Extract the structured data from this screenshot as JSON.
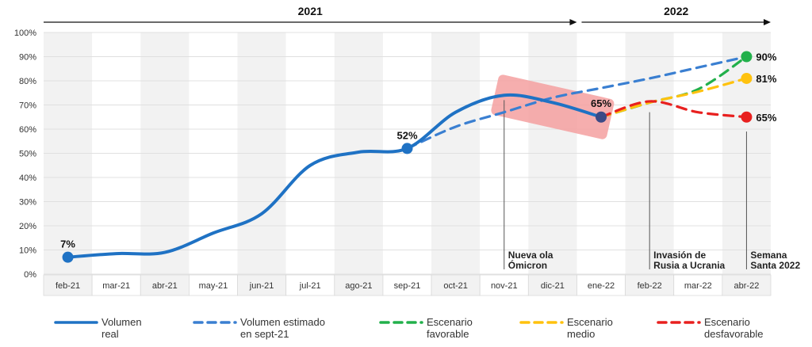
{
  "chart_data": {
    "type": "line",
    "categories": [
      "feb-21",
      "mar-21",
      "abr-21",
      "may-21",
      "jun-21",
      "jul-21",
      "ago-21",
      "sep-21",
      "oct-21",
      "nov-21",
      "dic-21",
      "ene-22",
      "feb-22",
      "mar-22",
      "abr-22"
    ],
    "yticks": [
      "0%",
      "10%",
      "20%",
      "30%",
      "40%",
      "50%",
      "60%",
      "70%",
      "80%",
      "90%",
      "100%"
    ],
    "ylim": [
      0,
      100
    ],
    "periods": [
      {
        "label": "2021",
        "from": "feb-21",
        "to": "dic-21"
      },
      {
        "label": "2022",
        "from": "ene-22",
        "to": "abr-22"
      }
    ],
    "series": [
      {
        "name": "Volumen real",
        "legend": [
          "Volumen",
          "real"
        ],
        "color": "#1f72c4",
        "dash": "solid",
        "x": [
          "feb-21",
          "mar-21",
          "abr-21",
          "may-21",
          "jun-21",
          "jul-21",
          "ago-21",
          "sep-21",
          "oct-21",
          "nov-21",
          "dic-21",
          "ene-22"
        ],
        "values": [
          7,
          8.5,
          9,
          17,
          25,
          45,
          50.5,
          52,
          67,
          74,
          71,
          65
        ]
      },
      {
        "name": "Volumen estimado en sept-21",
        "legend": [
          "Volumen estimado",
          "en sept-21"
        ],
        "color": "#3a7fd1",
        "dash": "dashed",
        "x": [
          "sep-21",
          "oct-21",
          "nov-21",
          "dic-21",
          "ene-22",
          "feb-22",
          "mar-22",
          "abr-22"
        ],
        "values": [
          52,
          61,
          67,
          73,
          77,
          81,
          85.5,
          90
        ]
      },
      {
        "name": "Escenario favorable",
        "legend": [
          "Escenario",
          "favorable"
        ],
        "color": "#22b04b",
        "dash": "dashed",
        "x": [
          "ene-22",
          "feb-22",
          "mar-22",
          "abr-22"
        ],
        "values": [
          65,
          71,
          76.5,
          90
        ]
      },
      {
        "name": "Escenario medio",
        "legend": [
          "Escenario",
          "medio"
        ],
        "color": "#ffc20e",
        "dash": "dashed",
        "x": [
          "ene-22",
          "feb-22",
          "mar-22",
          "abr-22"
        ],
        "values": [
          65,
          71,
          75.5,
          81
        ]
      },
      {
        "name": "Escenario desfavorable",
        "legend": [
          "Escenario",
          "desfavorable"
        ],
        "color": "#e8201f",
        "dash": "dashed",
        "x": [
          "ene-22",
          "feb-22",
          "mar-22",
          "abr-22"
        ],
        "values": [
          65,
          71.5,
          67,
          65
        ]
      }
    ],
    "point_labels": [
      {
        "x": "feb-21",
        "value": 7,
        "text": "7%",
        "color": "#1f72c4"
      },
      {
        "x": "sep-21",
        "value": 52,
        "text": "52%",
        "color": "#1f72c4"
      },
      {
        "x": "ene-22",
        "value": 65,
        "text": "65%",
        "color": "#3b4a86"
      },
      {
        "x": "abr-22",
        "value": 90,
        "text": "90%",
        "color": "#22b04b"
      },
      {
        "x": "abr-22",
        "value": 81,
        "text": "81%",
        "color": "#ffc20e"
      },
      {
        "x": "abr-22",
        "value": 65,
        "text": "65%",
        "color": "#e8201f"
      }
    ],
    "annotations": [
      {
        "x": "nov-21",
        "lines": [
          "Nueva ola",
          "Ómicron"
        ]
      },
      {
        "x": "feb-22",
        "lines": [
          "Invasión de",
          "Rusia a Ucrania"
        ]
      },
      {
        "x": "abr-22",
        "lines": [
          "Semana",
          "Santa 2022"
        ]
      }
    ],
    "highlight": {
      "from": "nov-21",
      "to": "ene-22",
      "color": "#f4a0a0"
    },
    "grid": true,
    "legend_position": "bottom"
  }
}
